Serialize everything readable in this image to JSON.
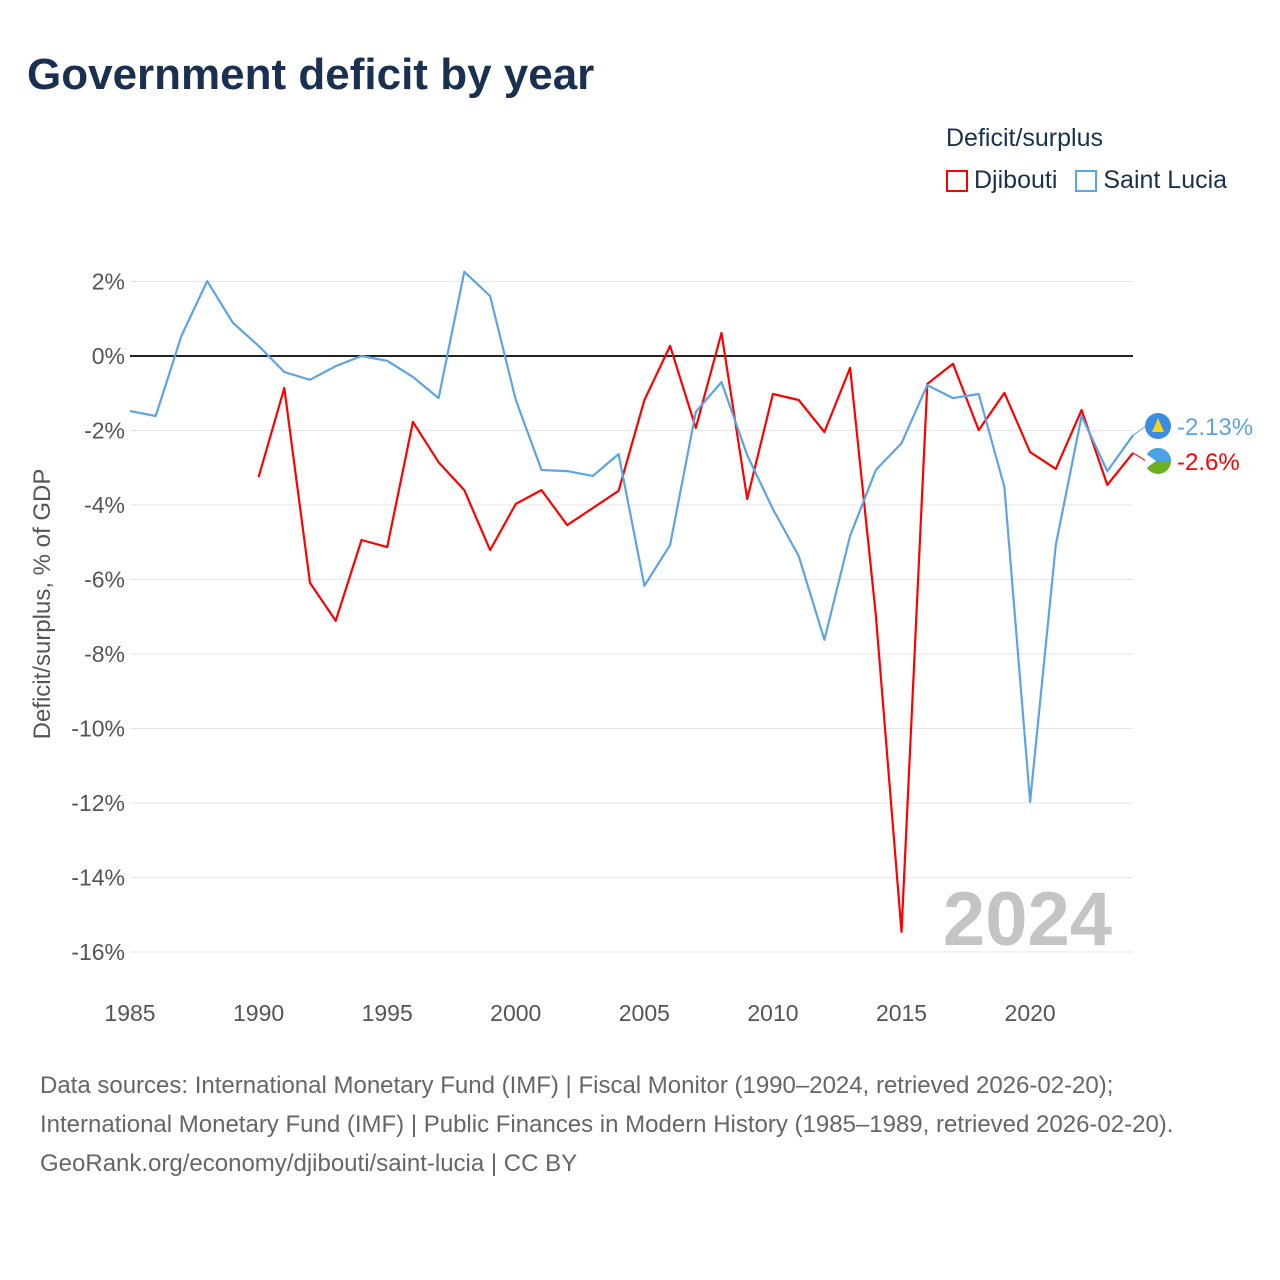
{
  "chart_data": {
    "type": "line",
    "title": "Government deficit by year",
    "ylabel": "Deficit/surplus, % of GDP",
    "xlabel": "",
    "legend_title": "Deficit/surplus",
    "legend_position": "top-right",
    "xlim": [
      1985,
      2024
    ],
    "ylim": [
      -16.8,
      2.6
    ],
    "x_ticks": [
      1985,
      1990,
      1995,
      2000,
      2005,
      2010,
      2015,
      2020
    ],
    "x_tick_labels": [
      "1985",
      "1990",
      "1995",
      "2000",
      "2005",
      "2010",
      "2015",
      "2020"
    ],
    "y_ticks": [
      2,
      0,
      -2,
      -4,
      -6,
      -8,
      -10,
      -12,
      -14,
      -16
    ],
    "y_tick_labels": [
      "2%",
      "0%",
      "-2%",
      "-4%",
      "-6%",
      "-8%",
      "-10%",
      "-12%",
      "-14%",
      "-16%"
    ],
    "grid": true,
    "watermark_year": "2024",
    "series": [
      {
        "name": "Djibouti",
        "color": "#ff0000",
        "end_label": "-2.6%",
        "x_start": 1990,
        "values": [
          -3.25,
          -0.86,
          -6.09,
          -7.11,
          -4.94,
          -5.13,
          -1.77,
          -2.85,
          -3.6,
          -5.21,
          -3.97,
          -3.6,
          -4.54,
          -4.08,
          -3.62,
          -1.18,
          0.27,
          -1.93,
          0.62,
          -3.84,
          -1.02,
          -1.18,
          -2.04,
          -0.32,
          -6.95,
          -15.46,
          -0.75,
          -0.21,
          -1.99,
          -0.99,
          -2.58,
          -3.03,
          -1.45,
          -3.46,
          -2.6
        ]
      },
      {
        "name": "Saint Lucia",
        "color": "#5ba4e6",
        "end_label": "-2.13%",
        "x_start": 1985,
        "values": [
          -1.48,
          -1.61,
          0.54,
          2.01,
          0.89,
          0.27,
          -0.43,
          -0.64,
          -0.27,
          0,
          -0.13,
          -0.56,
          -1.13,
          2.26,
          1.61,
          -1.18,
          -3.06,
          -3.09,
          -3.22,
          -2.63,
          -6.17,
          -5.07,
          -1.5,
          -0.7,
          -2.66,
          -4.11,
          -5.37,
          -7.62,
          -4.83,
          -3.06,
          -2.34,
          -0.78,
          -1.13,
          -1.02,
          -3.52,
          -11.97,
          -5.07,
          -1.61,
          -3.09,
          -2.13
        ]
      }
    ]
  },
  "footer": {
    "sources": "Data sources: International Monetary Fund (IMF) | Fiscal Monitor (1990–2024, retrieved 2026-02-20); International Monetary Fund (IMF) | Public Finances in Modern History (1985–1989, retrieved 2026-02-20).",
    "credit": "GeoRank.org/economy/djibouti/saint-lucia | CC BY"
  }
}
